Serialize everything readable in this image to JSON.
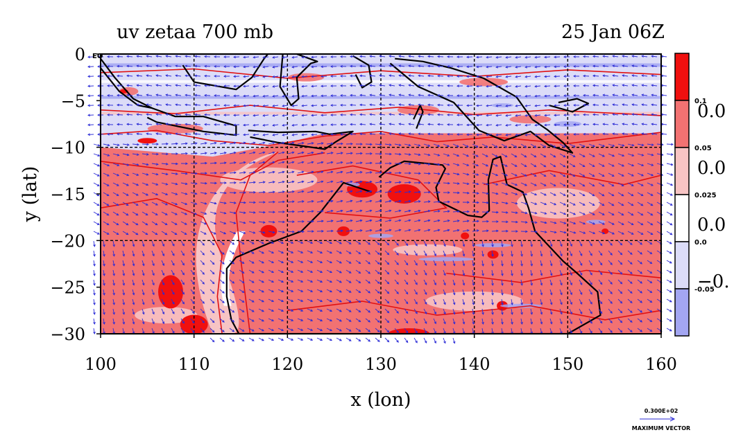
{
  "header": {
    "title_left": "uv zetaa 700 mb",
    "title_right": "25 Jan 06Z"
  },
  "chart_data": {
    "type": "heatmap",
    "title": "uv zetaa 700 mb",
    "valid_time": "25 Jan 06Z",
    "xlabel": "x (lon)",
    "ylabel": "y (lat)",
    "xlim": [
      100,
      160
    ],
    "ylim": [
      -30,
      0
    ],
    "x_ticks": [
      "100",
      "110",
      "120",
      "130",
      "140",
      "150",
      "160"
    ],
    "y_ticks": [
      "0",
      "−5",
      "−10",
      "−15",
      "−20",
      "−25",
      "−30"
    ],
    "y_tick_values": [
      0,
      -5,
      -10,
      -15,
      -20,
      -25,
      -30
    ],
    "x_tick_values": [
      100,
      110,
      120,
      130,
      140,
      150,
      160
    ],
    "grid": true,
    "corner_label": "EO",
    "colorbar": {
      "placement": "right",
      "levels": [
        {
          "label": "0.1",
          "color": "#f0100f"
        },
        {
          "label": "0.05",
          "color": "#f27272"
        },
        {
          "label": "0.025",
          "color": "#f7c4c4"
        },
        {
          "label": "0.0",
          "color": "#ffffff"
        },
        {
          "label": "-0.05",
          "color": "#dcdcf8"
        },
        {
          "label": "",
          "color": "#a3a6f2"
        }
      ],
      "overlap_labels": [
        "0.0",
        "0.0",
        "0.0",
        "−0."
      ]
    },
    "max_vector": {
      "value_label": "0.300E+02",
      "caption": "MAXIMUM VECTOR"
    },
    "colors": {
      "strong_positive": "#f0100f",
      "moderate_positive": "#f27272",
      "weak_positive": "#f7c4c4",
      "neutral": "#ffffff",
      "weak_negative": "#dcdcf8",
      "strong_negative": "#a3a6f2",
      "vectors": "#2b2bd6",
      "coastline": "#000000",
      "contour": "#e01010"
    }
  }
}
